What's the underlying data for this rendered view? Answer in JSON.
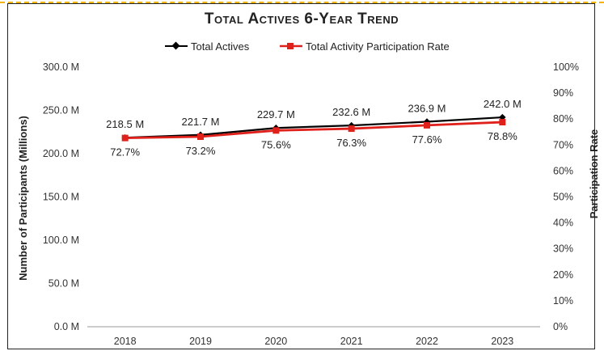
{
  "chart_data": {
    "type": "line",
    "title": "Total Actives 6-Year Trend",
    "categories": [
      "2018",
      "2019",
      "2020",
      "2021",
      "2022",
      "2023"
    ],
    "series": [
      {
        "name": "Total Actives",
        "axis": "left",
        "values": [
          218.5,
          221.7,
          229.7,
          232.6,
          236.9,
          242.0
        ],
        "labels": [
          "218.5 M",
          "221.7 M",
          "229.7 M",
          "232.6 M",
          "236.9 M",
          "242.0 M"
        ],
        "color": "#000000",
        "marker": "diamond"
      },
      {
        "name": "Total Activity Participation Rate",
        "axis": "right",
        "values": [
          72.7,
          73.2,
          75.6,
          76.3,
          77.6,
          78.8
        ],
        "labels": [
          "72.7%",
          "73.2%",
          "75.6%",
          "76.3%",
          "77.6%",
          "78.8%"
        ],
        "color": "#e0201b",
        "marker": "square"
      }
    ],
    "ylabel": "Number of Participants (Millions)",
    "ylim": [
      0,
      300
    ],
    "yticks": [
      "0.0 M",
      "50.0 M",
      "100.0 M",
      "150.0 M",
      "200.0 M",
      "250.0 M",
      "300.0 M"
    ],
    "y2label": "Participation Rate",
    "y2lim": [
      0,
      100
    ],
    "y2ticks": [
      "0%",
      "10%",
      "20%",
      "30%",
      "40%",
      "50%",
      "60%",
      "70%",
      "80%",
      "90%",
      "100%"
    ],
    "grid": false,
    "legend": "top-center"
  },
  "colors": {
    "frame_accent": "#f2b400",
    "axis": "#9a9a9a"
  }
}
